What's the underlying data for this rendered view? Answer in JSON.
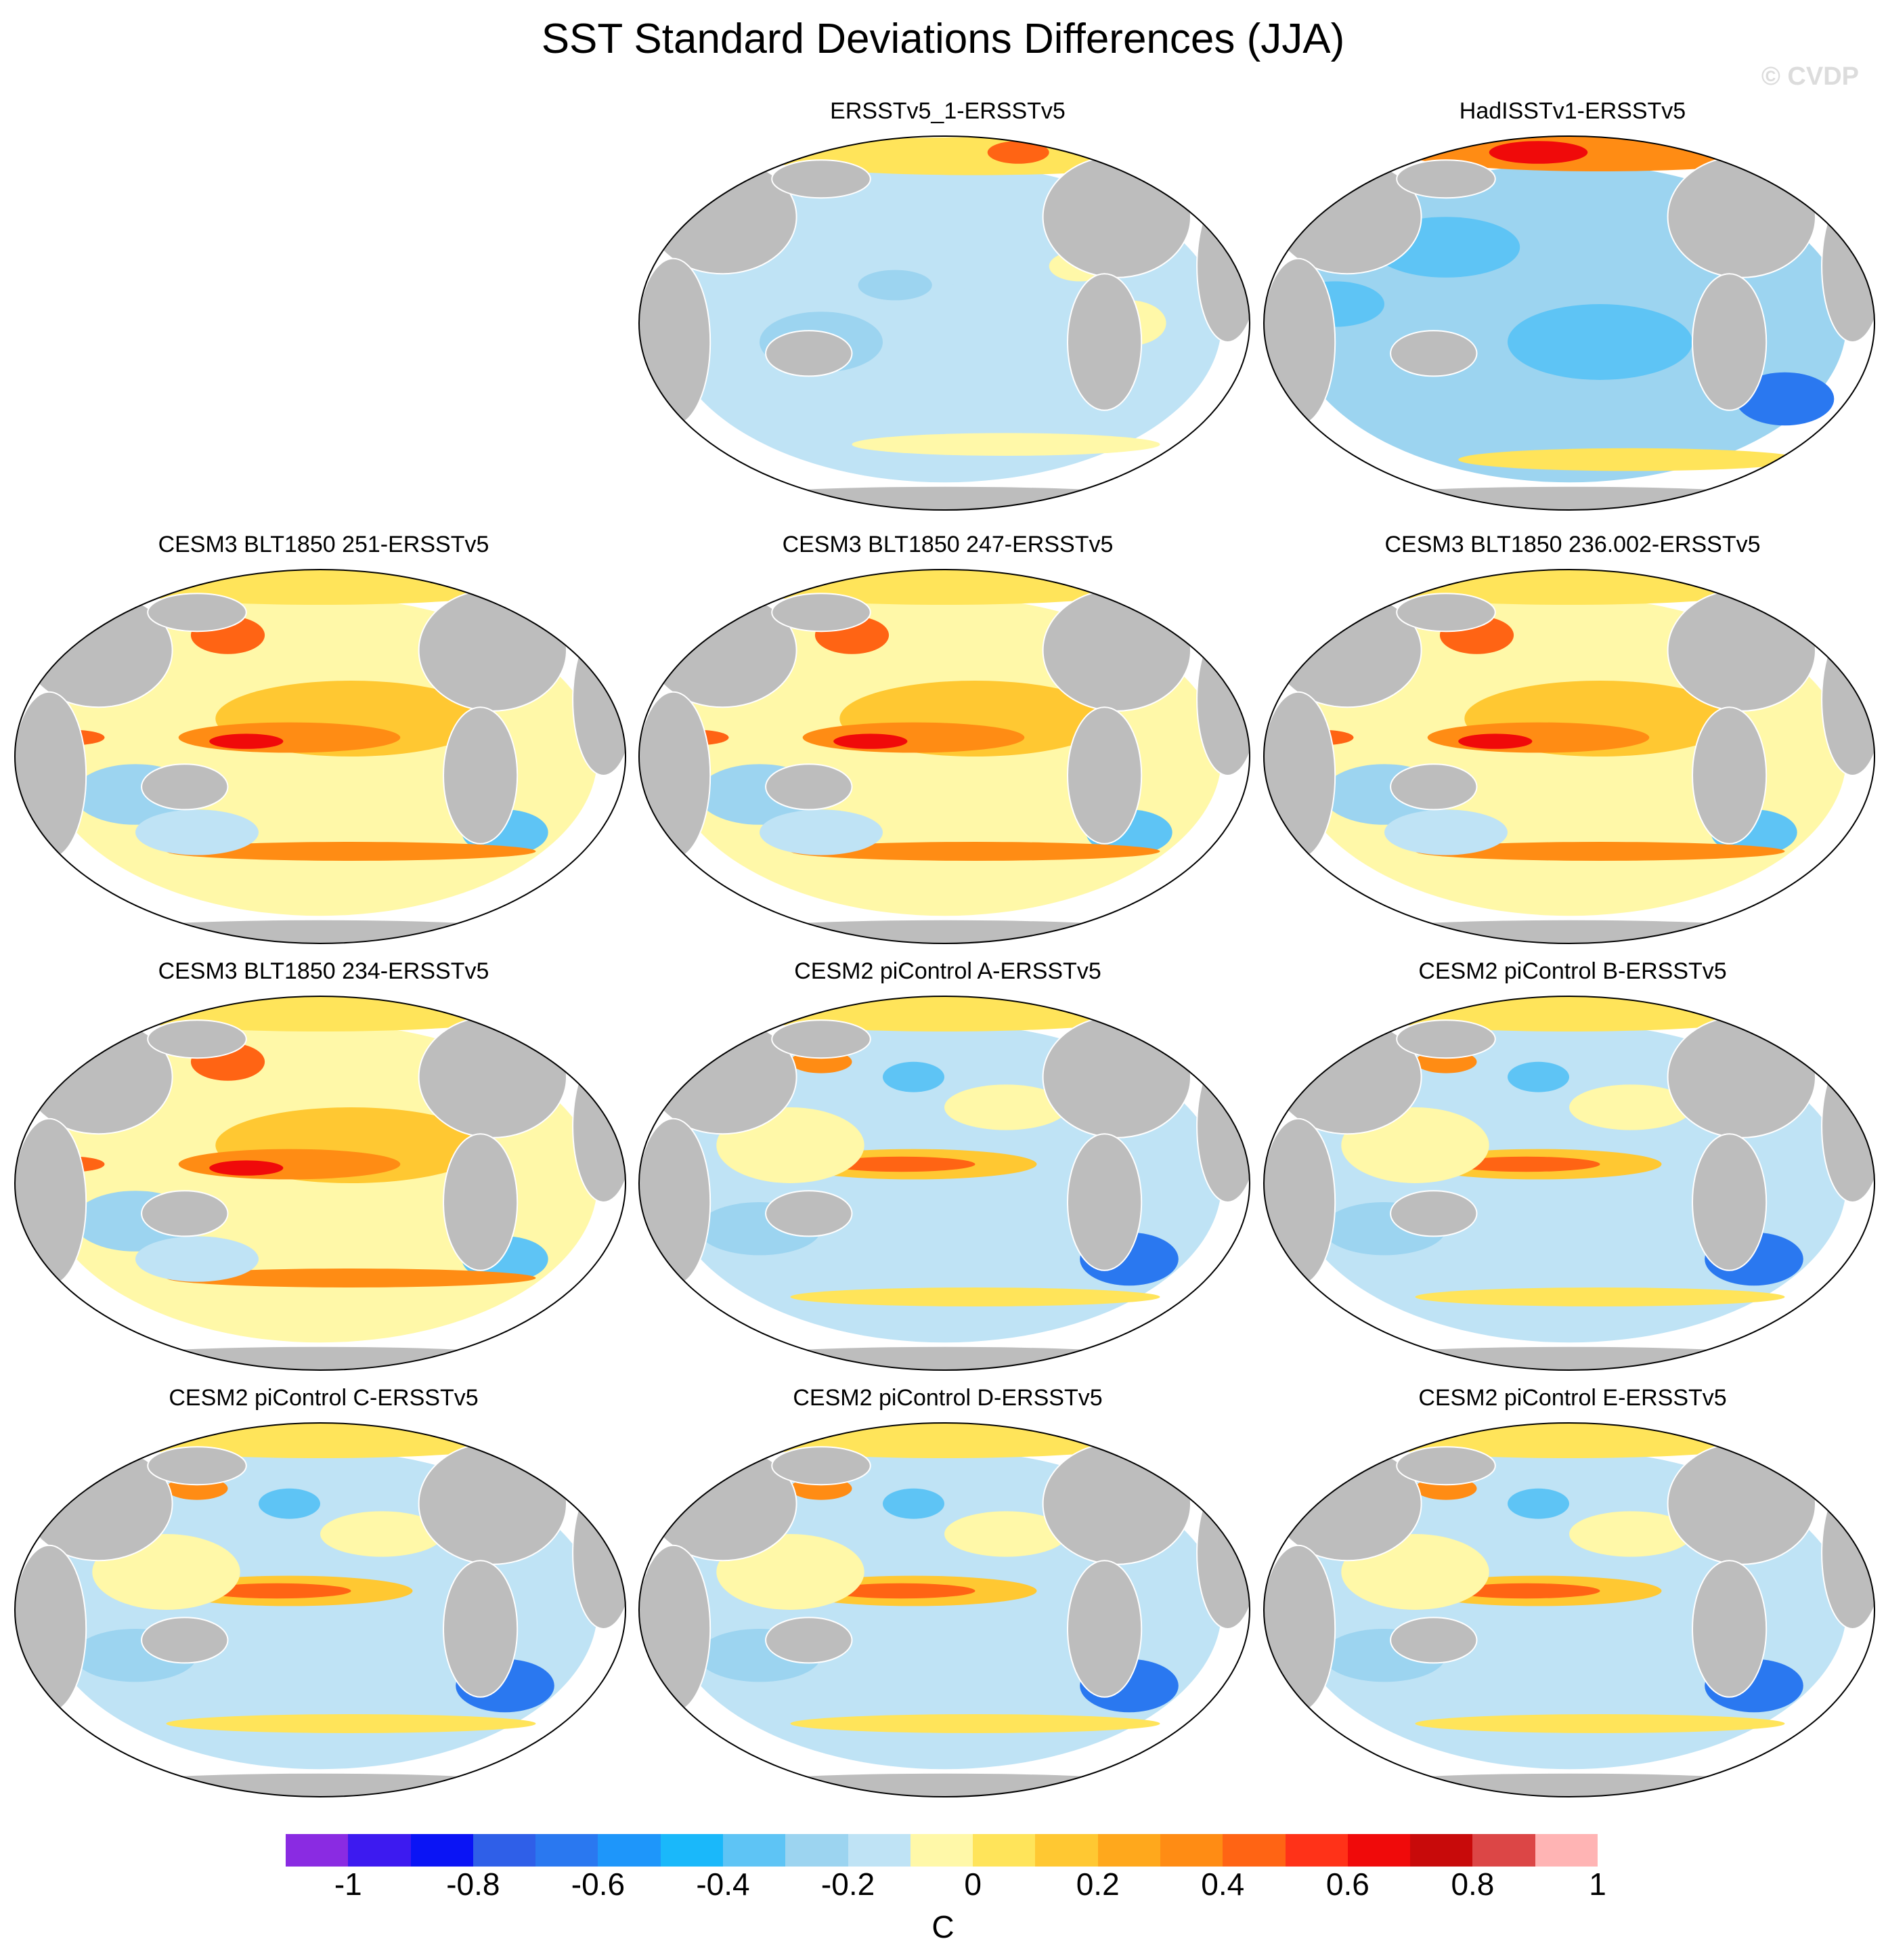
{
  "title": "SST Standard Deviations Differences (JJA)",
  "watermark": "© CVDP",
  "panels": [
    {
      "title": "ERSSTv5_1-ERSSTv5",
      "style": "obs1"
    },
    {
      "title": "HadISSTv1-ERSSTv5",
      "style": "obs2"
    },
    {
      "title": "CESM3 BLT1850 251-ERSSTv5",
      "style": "warm"
    },
    {
      "title": "CESM3 BLT1850 247-ERSSTv5",
      "style": "warm"
    },
    {
      "title": "CESM3 BLT1850 236.002-ERSSTv5",
      "style": "warm"
    },
    {
      "title": "CESM3 BLT1850 234-ERSSTv5",
      "style": "warm"
    },
    {
      "title": "CESM2 piControl A-ERSSTv5",
      "style": "mixed"
    },
    {
      "title": "CESM2 piControl B-ERSSTv5",
      "style": "mixed"
    },
    {
      "title": "CESM2 piControl C-ERSSTv5",
      "style": "mixed"
    },
    {
      "title": "CESM2 piControl D-ERSSTv5",
      "style": "mixed"
    },
    {
      "title": "CESM2 piControl E-ERSSTv5",
      "style": "mixed"
    }
  ],
  "colorbar": {
    "unit": "C",
    "ticks": [
      "-1",
      "-0.8",
      "-0.6",
      "-0.4",
      "-0.2",
      "0",
      "0.2",
      "0.4",
      "0.6",
      "0.8",
      "1"
    ],
    "colors": [
      "#8a2be2",
      "#3d1af0",
      "#0a14f5",
      "#2f5fe8",
      "#2a78f0",
      "#1e96fa",
      "#1ab8fa",
      "#5ec4f5",
      "#9cd4f0",
      "#bfe3f5",
      "#fff8a8",
      "#ffe45a",
      "#ffc832",
      "#ffa81c",
      "#ff8c14",
      "#ff6414",
      "#ff3218",
      "#f00a0a",
      "#c80a0a",
      "#dc4646",
      "#ffb4b4"
    ]
  }
}
